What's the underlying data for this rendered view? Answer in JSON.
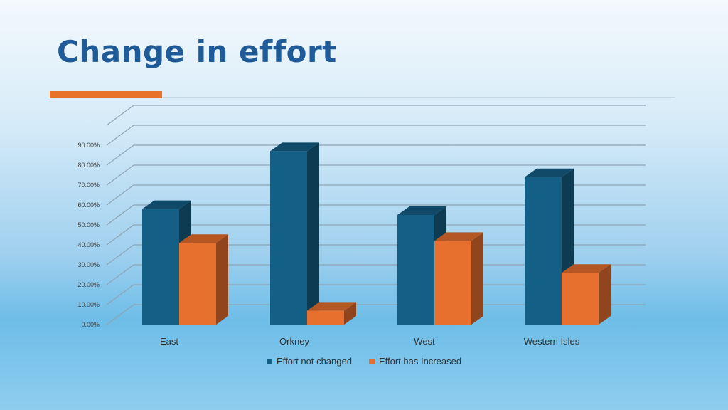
{
  "slide": {
    "title": "Change in effort"
  },
  "colors": {
    "accent": "#e8722a",
    "title": "#1f5a99"
  },
  "chart_data": {
    "type": "bar",
    "style": "3d-clustered-column",
    "categories": [
      "East",
      "Orkney",
      "West",
      "Western Isles"
    ],
    "series": [
      {
        "name": "Effort not changed",
        "color": "#145f85",
        "values": [
          58,
          87,
          55,
          74
        ]
      },
      {
        "name": "Effort has Increased",
        "color": "#e8702e",
        "values": [
          41,
          7,
          42,
          26
        ]
      }
    ],
    "ylim": [
      0,
      90
    ],
    "yticks": [
      "0.00%",
      "10.00%",
      "20.00%",
      "30.00%",
      "40.00%",
      "50.00%",
      "60.00%",
      "70.00%",
      "80.00%",
      "90.00%"
    ],
    "grid": true,
    "legend_position": "bottom"
  }
}
